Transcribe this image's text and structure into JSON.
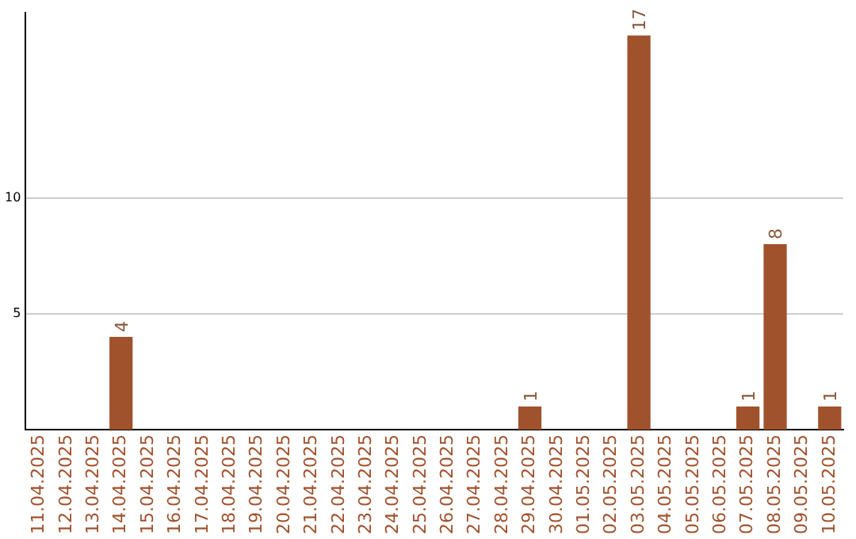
{
  "chart_data": {
    "type": "bar",
    "categories": [
      "11.04.2025",
      "12.04.2025",
      "13.04.2025",
      "14.04.2025",
      "15.04.2025",
      "16.04.2025",
      "17.04.2025",
      "18.04.2025",
      "19.04.2025",
      "20.04.2025",
      "21.04.2025",
      "22.04.2025",
      "23.04.2025",
      "24.04.2025",
      "25.04.2025",
      "26.04.2025",
      "27.04.2025",
      "28.04.2025",
      "29.04.2025",
      "30.04.2025",
      "01.05.2025",
      "02.05.2025",
      "03.05.2025",
      "04.05.2025",
      "05.05.2025",
      "06.05.2025",
      "07.05.2025",
      "08.05.2025",
      "09.05.2025",
      "10.05.2025"
    ],
    "values": [
      0,
      0,
      0,
      4,
      0,
      0,
      0,
      0,
      0,
      0,
      0,
      0,
      0,
      0,
      0,
      0,
      0,
      0,
      1,
      0,
      0,
      0,
      17,
      0,
      0,
      0,
      1,
      8,
      0,
      1
    ],
    "value_labels": [
      null,
      null,
      null,
      "4",
      null,
      null,
      null,
      null,
      null,
      null,
      null,
      null,
      null,
      null,
      null,
      null,
      null,
      null,
      "1",
      null,
      null,
      null,
      "17",
      null,
      null,
      null,
      "1",
      "8",
      null,
      "1"
    ],
    "color": "#a0522d",
    "ylim": [
      0,
      18
    ],
    "yticks": [
      5,
      10
    ],
    "grid": "y",
    "legend": false
  }
}
